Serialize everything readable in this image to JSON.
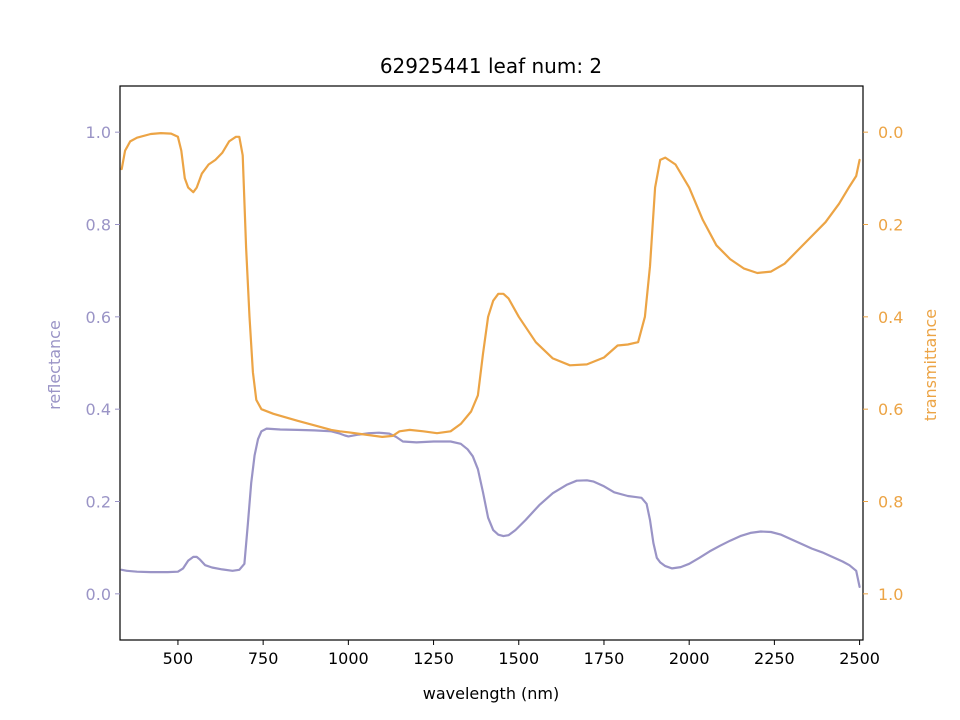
{
  "chart_data": {
    "type": "line",
    "title": "62925441 leaf num: 2",
    "xlabel": "wavelength (nm)",
    "ylabel_left": "reflectance",
    "ylabel_right": "transmittance",
    "xlim": [
      330,
      2510
    ],
    "ylim_left": [
      -0.1,
      1.1
    ],
    "ylim_right": [
      1.1,
      -0.1
    ],
    "x_ticks": [
      500,
      750,
      1000,
      1250,
      1500,
      1750,
      2000,
      2250,
      2500
    ],
    "y_ticks_left": [
      0.0,
      0.2,
      0.4,
      0.6,
      0.8,
      1.0
    ],
    "y_ticks_right": [
      0.0,
      0.2,
      0.4,
      0.6,
      0.8,
      1.0
    ],
    "grid": false,
    "colors": {
      "reflectance": "#9a94c6",
      "transmittance": "#eca445",
      "axis": "#000000"
    },
    "series": [
      {
        "axis": "left",
        "color": "#9a94c6",
        "points": [
          [
            335,
            0.052
          ],
          [
            350,
            0.05
          ],
          [
            380,
            0.048
          ],
          [
            420,
            0.047
          ],
          [
            470,
            0.047
          ],
          [
            500,
            0.048
          ],
          [
            515,
            0.055
          ],
          [
            530,
            0.072
          ],
          [
            545,
            0.08
          ],
          [
            555,
            0.08
          ],
          [
            565,
            0.074
          ],
          [
            580,
            0.062
          ],
          [
            600,
            0.057
          ],
          [
            630,
            0.053
          ],
          [
            660,
            0.05
          ],
          [
            680,
            0.052
          ],
          [
            695,
            0.065
          ],
          [
            705,
            0.15
          ],
          [
            715,
            0.24
          ],
          [
            725,
            0.3
          ],
          [
            735,
            0.335
          ],
          [
            745,
            0.352
          ],
          [
            760,
            0.358
          ],
          [
            800,
            0.356
          ],
          [
            850,
            0.355
          ],
          [
            900,
            0.354
          ],
          [
            950,
            0.352
          ],
          [
            975,
            0.347
          ],
          [
            990,
            0.343
          ],
          [
            1000,
            0.341
          ],
          [
            1030,
            0.345
          ],
          [
            1060,
            0.348
          ],
          [
            1090,
            0.349
          ],
          [
            1120,
            0.347
          ],
          [
            1140,
            0.34
          ],
          [
            1160,
            0.33
          ],
          [
            1200,
            0.328
          ],
          [
            1250,
            0.33
          ],
          [
            1300,
            0.33
          ],
          [
            1330,
            0.325
          ],
          [
            1350,
            0.313
          ],
          [
            1365,
            0.298
          ],
          [
            1380,
            0.27
          ],
          [
            1395,
            0.22
          ],
          [
            1410,
            0.165
          ],
          [
            1425,
            0.138
          ],
          [
            1440,
            0.128
          ],
          [
            1455,
            0.125
          ],
          [
            1470,
            0.127
          ],
          [
            1490,
            0.138
          ],
          [
            1520,
            0.16
          ],
          [
            1560,
            0.192
          ],
          [
            1600,
            0.218
          ],
          [
            1640,
            0.236
          ],
          [
            1670,
            0.245
          ],
          [
            1700,
            0.246
          ],
          [
            1720,
            0.243
          ],
          [
            1750,
            0.233
          ],
          [
            1780,
            0.22
          ],
          [
            1820,
            0.212
          ],
          [
            1860,
            0.208
          ],
          [
            1875,
            0.195
          ],
          [
            1885,
            0.16
          ],
          [
            1895,
            0.11
          ],
          [
            1905,
            0.078
          ],
          [
            1915,
            0.068
          ],
          [
            1930,
            0.06
          ],
          [
            1950,
            0.055
          ],
          [
            1975,
            0.058
          ],
          [
            2000,
            0.065
          ],
          [
            2030,
            0.078
          ],
          [
            2060,
            0.092
          ],
          [
            2090,
            0.104
          ],
          [
            2120,
            0.115
          ],
          [
            2150,
            0.125
          ],
          [
            2180,
            0.132
          ],
          [
            2210,
            0.135
          ],
          [
            2240,
            0.134
          ],
          [
            2270,
            0.128
          ],
          [
            2300,
            0.118
          ],
          [
            2330,
            0.108
          ],
          [
            2360,
            0.098
          ],
          [
            2390,
            0.09
          ],
          [
            2420,
            0.08
          ],
          [
            2450,
            0.07
          ],
          [
            2470,
            0.062
          ],
          [
            2490,
            0.05
          ],
          [
            2500,
            0.015
          ]
        ]
      },
      {
        "axis": "right",
        "color": "#eca445",
        "points": [
          [
            335,
            0.08
          ],
          [
            345,
            0.04
          ],
          [
            360,
            0.02
          ],
          [
            380,
            0.012
          ],
          [
            420,
            0.004
          ],
          [
            450,
            0.002
          ],
          [
            480,
            0.003
          ],
          [
            500,
            0.01
          ],
          [
            510,
            0.04
          ],
          [
            520,
            0.1
          ],
          [
            530,
            0.12
          ],
          [
            545,
            0.13
          ],
          [
            555,
            0.12
          ],
          [
            570,
            0.09
          ],
          [
            590,
            0.07
          ],
          [
            610,
            0.06
          ],
          [
            630,
            0.045
          ],
          [
            650,
            0.02
          ],
          [
            670,
            0.01
          ],
          [
            680,
            0.01
          ],
          [
            690,
            0.05
          ],
          [
            700,
            0.25
          ],
          [
            710,
            0.4
          ],
          [
            720,
            0.52
          ],
          [
            730,
            0.58
          ],
          [
            745,
            0.6
          ],
          [
            780,
            0.61
          ],
          [
            850,
            0.625
          ],
          [
            900,
            0.635
          ],
          [
            950,
            0.645
          ],
          [
            975,
            0.648
          ],
          [
            1000,
            0.65
          ],
          [
            1050,
            0.655
          ],
          [
            1100,
            0.66
          ],
          [
            1130,
            0.658
          ],
          [
            1150,
            0.648
          ],
          [
            1180,
            0.645
          ],
          [
            1220,
            0.648
          ],
          [
            1260,
            0.652
          ],
          [
            1300,
            0.648
          ],
          [
            1330,
            0.632
          ],
          [
            1360,
            0.605
          ],
          [
            1380,
            0.57
          ],
          [
            1395,
            0.48
          ],
          [
            1410,
            0.4
          ],
          [
            1425,
            0.365
          ],
          [
            1440,
            0.35
          ],
          [
            1455,
            0.35
          ],
          [
            1470,
            0.36
          ],
          [
            1500,
            0.4
          ],
          [
            1550,
            0.455
          ],
          [
            1600,
            0.49
          ],
          [
            1650,
            0.505
          ],
          [
            1700,
            0.503
          ],
          [
            1750,
            0.488
          ],
          [
            1790,
            0.462
          ],
          [
            1820,
            0.46
          ],
          [
            1850,
            0.455
          ],
          [
            1870,
            0.4
          ],
          [
            1885,
            0.29
          ],
          [
            1900,
            0.12
          ],
          [
            1915,
            0.06
          ],
          [
            1930,
            0.055
          ],
          [
            1960,
            0.07
          ],
          [
            2000,
            0.12
          ],
          [
            2040,
            0.19
          ],
          [
            2080,
            0.245
          ],
          [
            2120,
            0.275
          ],
          [
            2160,
            0.295
          ],
          [
            2200,
            0.305
          ],
          [
            2240,
            0.302
          ],
          [
            2280,
            0.285
          ],
          [
            2320,
            0.255
          ],
          [
            2360,
            0.225
          ],
          [
            2400,
            0.195
          ],
          [
            2440,
            0.155
          ],
          [
            2470,
            0.118
          ],
          [
            2490,
            0.095
          ],
          [
            2500,
            0.06
          ]
        ]
      }
    ]
  }
}
